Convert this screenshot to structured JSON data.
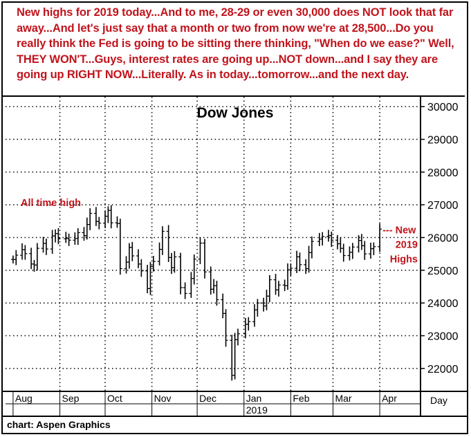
{
  "commentary": "New highs for 2019 today...And to me, 28-29 or even 30,000 does NOT look that far away...And let's just say that a month or two from now we're at 28,500...Do you really think the Fed is going to be sitting there thinking, \"When do we ease?\" Well, THEY WON'T...Guys, interest rates are going up...NOT down...and I say they are going up RIGHT NOW...Literally. As in today...tomorrow...and the next day.",
  "footer": "chart: Aspen Graphics",
  "colors": {
    "annotation": "#c0141c",
    "bars": "#000000",
    "frame": "#000000"
  },
  "chart_data": {
    "type": "bar",
    "style": "ohlc",
    "title": "Dow Jones",
    "x_period": "Day",
    "x_year_label": "2019",
    "x_ticks": [
      "Aug",
      "Sep",
      "Oct",
      "Nov",
      "Dec",
      "Jan",
      "Feb",
      "Mar",
      "Apr"
    ],
    "y_ticks": [
      22000,
      23000,
      24000,
      25000,
      26000,
      27000,
      28000,
      29000,
      30000
    ],
    "ylim": [
      21300,
      30300
    ],
    "grid": true,
    "annotations": [
      {
        "text": "All time high",
        "date": "2018-10-03",
        "value": 26951
      },
      {
        "text": "--- New 2019 Highs",
        "date": "2019-04-01",
        "value": 26258
      }
    ],
    "series": [
      {
        "date": "2018-08-01",
        "value": 25330
      },
      {
        "date": "2018-08-03",
        "value": 25460
      },
      {
        "date": "2018-08-07",
        "value": 25630
      },
      {
        "date": "2018-08-09",
        "value": 25510
      },
      {
        "date": "2018-08-13",
        "value": 25190
      },
      {
        "date": "2018-08-15",
        "value": 25160
      },
      {
        "date": "2018-08-17",
        "value": 25670
      },
      {
        "date": "2018-08-21",
        "value": 25820
      },
      {
        "date": "2018-08-23",
        "value": 25650
      },
      {
        "date": "2018-08-27",
        "value": 26050
      },
      {
        "date": "2018-08-29",
        "value": 26120
      },
      {
        "date": "2018-08-31",
        "value": 25960
      },
      {
        "date": "2018-09-05",
        "value": 25970
      },
      {
        "date": "2018-09-07",
        "value": 25920
      },
      {
        "date": "2018-09-11",
        "value": 25970
      },
      {
        "date": "2018-09-13",
        "value": 26150
      },
      {
        "date": "2018-09-17",
        "value": 26060
      },
      {
        "date": "2018-09-19",
        "value": 26400
      },
      {
        "date": "2018-09-21",
        "value": 26740
      },
      {
        "date": "2018-09-25",
        "value": 26490
      },
      {
        "date": "2018-09-27",
        "value": 26440
      },
      {
        "date": "2018-10-01",
        "value": 26650
      },
      {
        "date": "2018-10-03",
        "value": 26830
      },
      {
        "date": "2018-10-05",
        "value": 26450
      },
      {
        "date": "2018-10-09",
        "value": 26430
      },
      {
        "date": "2018-10-11",
        "value": 25050
      },
      {
        "date": "2018-10-15",
        "value": 25250
      },
      {
        "date": "2018-10-17",
        "value": 25700
      },
      {
        "date": "2018-10-19",
        "value": 25440
      },
      {
        "date": "2018-10-23",
        "value": 25190
      },
      {
        "date": "2018-10-25",
        "value": 24980
      },
      {
        "date": "2018-10-29",
        "value": 24440
      },
      {
        "date": "2018-10-31",
        "value": 25120
      },
      {
        "date": "2018-11-02",
        "value": 25270
      },
      {
        "date": "2018-11-06",
        "value": 25640
      },
      {
        "date": "2018-11-08",
        "value": 26190
      },
      {
        "date": "2018-11-12",
        "value": 25390
      },
      {
        "date": "2018-11-14",
        "value": 25080
      },
      {
        "date": "2018-11-16",
        "value": 25410
      },
      {
        "date": "2018-11-20",
        "value": 24470
      },
      {
        "date": "2018-11-23",
        "value": 24290
      },
      {
        "date": "2018-11-27",
        "value": 24750
      },
      {
        "date": "2018-11-29",
        "value": 25340
      },
      {
        "date": "2018-12-03",
        "value": 25830
      },
      {
        "date": "2018-12-06",
        "value": 24950
      },
      {
        "date": "2018-12-10",
        "value": 24420
      },
      {
        "date": "2018-12-12",
        "value": 24530
      },
      {
        "date": "2018-12-14",
        "value": 24100
      },
      {
        "date": "2018-12-18",
        "value": 23680
      },
      {
        "date": "2018-12-20",
        "value": 22860
      },
      {
        "date": "2018-12-24",
        "value": 21790
      },
      {
        "date": "2018-12-26",
        "value": 22880
      },
      {
        "date": "2018-12-28",
        "value": 23060
      },
      {
        "date": "2019-01-02",
        "value": 23350
      },
      {
        "date": "2019-01-04",
        "value": 23430
      },
      {
        "date": "2019-01-08",
        "value": 23790
      },
      {
        "date": "2019-01-10",
        "value": 24000
      },
      {
        "date": "2019-01-14",
        "value": 23910
      },
      {
        "date": "2019-01-16",
        "value": 24210
      },
      {
        "date": "2019-01-18",
        "value": 24710
      },
      {
        "date": "2019-01-22",
        "value": 24400
      },
      {
        "date": "2019-01-24",
        "value": 24550
      },
      {
        "date": "2019-01-28",
        "value": 24530
      },
      {
        "date": "2019-01-30",
        "value": 25010
      },
      {
        "date": "2019-02-01",
        "value": 25060
      },
      {
        "date": "2019-02-05",
        "value": 25410
      },
      {
        "date": "2019-02-07",
        "value": 25170
      },
      {
        "date": "2019-02-11",
        "value": 25050
      },
      {
        "date": "2019-02-13",
        "value": 25540
      },
      {
        "date": "2019-02-15",
        "value": 25880
      },
      {
        "date": "2019-02-20",
        "value": 25950
      },
      {
        "date": "2019-02-22",
        "value": 26030
      },
      {
        "date": "2019-02-26",
        "value": 26060
      },
      {
        "date": "2019-02-28",
        "value": 25920
      },
      {
        "date": "2019-03-04",
        "value": 25810
      },
      {
        "date": "2019-03-06",
        "value": 25670
      },
      {
        "date": "2019-03-08",
        "value": 25450
      },
      {
        "date": "2019-03-12",
        "value": 25550
      },
      {
        "date": "2019-03-14",
        "value": 25710
      },
      {
        "date": "2019-03-18",
        "value": 25910
      },
      {
        "date": "2019-03-20",
        "value": 25750
      },
      {
        "date": "2019-03-22",
        "value": 25500
      },
      {
        "date": "2019-03-26",
        "value": 25660
      },
      {
        "date": "2019-03-28",
        "value": 25720
      },
      {
        "date": "2019-04-01",
        "value": 26260
      }
    ]
  }
}
